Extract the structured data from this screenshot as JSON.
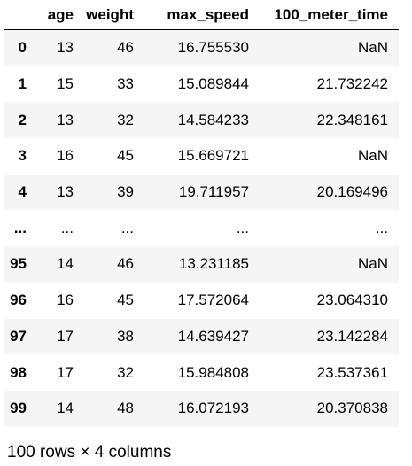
{
  "dataframe": {
    "columns": [
      "",
      "age",
      "weight",
      "max_speed",
      "100_meter_time"
    ],
    "rows": [
      {
        "index": "0",
        "age": "13",
        "weight": "46",
        "max_speed": "16.755530",
        "time": "NaN"
      },
      {
        "index": "1",
        "age": "15",
        "weight": "33",
        "max_speed": "15.089844",
        "time": "21.732242"
      },
      {
        "index": "2",
        "age": "13",
        "weight": "32",
        "max_speed": "14.584233",
        "time": "22.348161"
      },
      {
        "index": "3",
        "age": "16",
        "weight": "45",
        "max_speed": "15.669721",
        "time": "NaN"
      },
      {
        "index": "4",
        "age": "13",
        "weight": "39",
        "max_speed": "19.711957",
        "time": "20.169496"
      },
      {
        "index": "...",
        "age": "...",
        "weight": "...",
        "max_speed": "...",
        "time": "..."
      },
      {
        "index": "95",
        "age": "14",
        "weight": "46",
        "max_speed": "13.231185",
        "time": "NaN"
      },
      {
        "index": "96",
        "age": "16",
        "weight": "45",
        "max_speed": "17.572064",
        "time": "23.064310"
      },
      {
        "index": "97",
        "age": "17",
        "weight": "38",
        "max_speed": "14.639427",
        "time": "23.142284"
      },
      {
        "index": "98",
        "age": "17",
        "weight": "32",
        "max_speed": "15.984808",
        "time": "23.537361"
      },
      {
        "index": "99",
        "age": "14",
        "weight": "48",
        "max_speed": "16.072193",
        "time": "20.370838"
      }
    ],
    "shape_text": "100 rows × 4 columns"
  }
}
